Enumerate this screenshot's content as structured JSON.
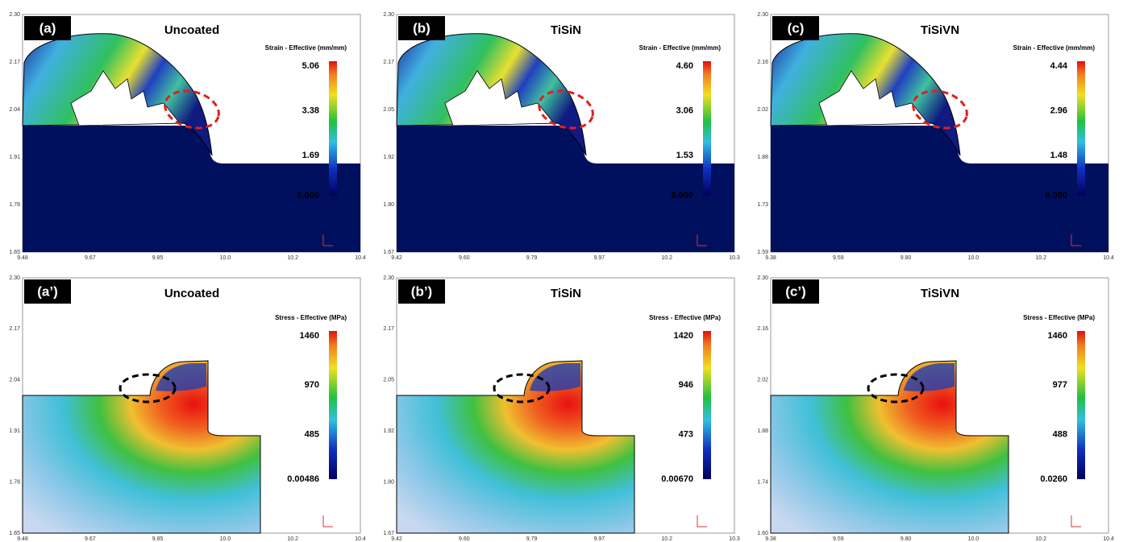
{
  "panels": [
    {
      "label": "(a)",
      "title": "Uncoated",
      "legend_title": "Strain - Effective (mm/mm)",
      "legend_ticks": [
        "5.06",
        "3.38",
        "1.69",
        "0.000"
      ],
      "yticks": [
        "2.30",
        "2.17",
        "2.04",
        "1.91",
        "1.78",
        "1.65"
      ],
      "xticks": [
        "9.48",
        "9.67",
        "9.85",
        "10.0",
        "10.2",
        "10.4"
      ]
    },
    {
      "label": "(b)",
      "title": "TiSiN",
      "legend_title": "Strain - Effective (mm/mm)",
      "legend_ticks": [
        "4.60",
        "3.06",
        "1.53",
        "0.000"
      ],
      "yticks": [
        "2.30",
        "2.17",
        "2.05",
        "1.92",
        "1.80",
        "1.67"
      ],
      "xticks": [
        "9.42",
        "9.60",
        "9.79",
        "9.97",
        "10.2",
        "10.3"
      ]
    },
    {
      "label": "(c)",
      "title": "TiSiVN",
      "legend_title": "Strain - Effective (mm/mm)",
      "legend_ticks": [
        "4.44",
        "2.96",
        "1.48",
        "0.000"
      ],
      "yticks": [
        "2.30",
        "2.16",
        "2.02",
        "1.88",
        "1.73",
        "1.59"
      ],
      "xticks": [
        "9.38",
        "9.59",
        "9.80",
        "10.0",
        "10.2",
        "10.4"
      ]
    },
    {
      "label": "(a’)",
      "title": "Uncoated",
      "legend_title": "Stress - Effective (MPa)",
      "legend_ticks": [
        "1460",
        "970",
        "485",
        "0.00486"
      ],
      "yticks": [
        "2.30",
        "2.17",
        "2.04",
        "1.91",
        "1.78",
        "1.65"
      ],
      "xticks": [
        "9.48",
        "9.67",
        "9.85",
        "10.0",
        "10.2",
        "10.4"
      ]
    },
    {
      "label": "(b’)",
      "title": "TiSiN",
      "legend_title": "Stress - Effective (MPa)",
      "legend_ticks": [
        "1420",
        "946",
        "473",
        "0.00670"
      ],
      "yticks": [
        "2.30",
        "2.17",
        "2.05",
        "1.92",
        "1.80",
        "1.67"
      ],
      "xticks": [
        "9.42",
        "9.60",
        "9.79",
        "9.97",
        "10.2",
        "10.3"
      ]
    },
    {
      "label": "(c’)",
      "title": "TiSiVN",
      "legend_title": "Stress - Effective (MPa)",
      "legend_ticks": [
        "1460",
        "977",
        "488",
        "0.0260"
      ],
      "yticks": [
        "2.30",
        "2.16",
        "2.02",
        "1.88",
        "1.74",
        "1.60"
      ],
      "xticks": [
        "9.38",
        "9.59",
        "9.80",
        "10.0",
        "10.2",
        "10.4"
      ]
    }
  ]
}
